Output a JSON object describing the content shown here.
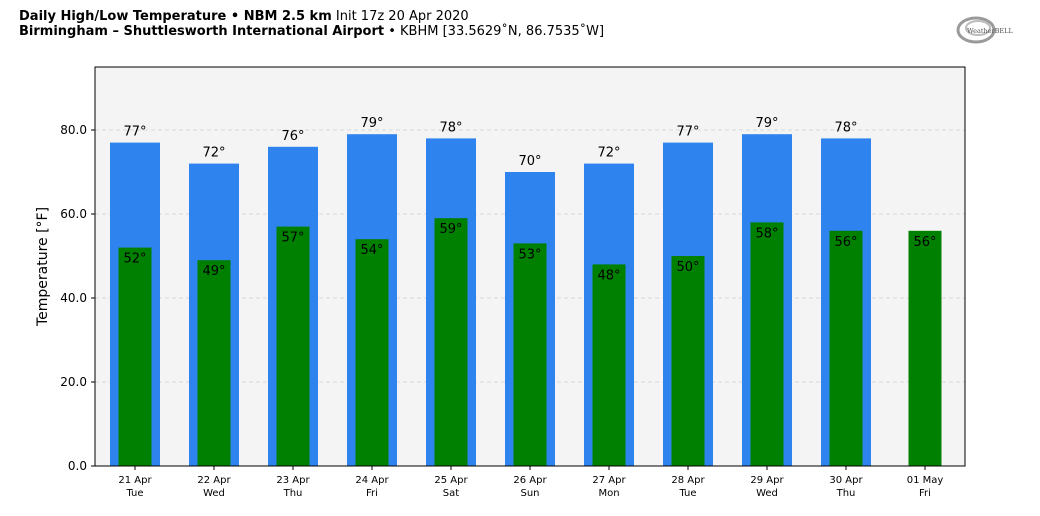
{
  "header": {
    "title_bold": "Daily High/Low Temperature • NBM 2.5 km",
    "title_init": "Init 17z 20 Apr 2020",
    "location_bold": "Birmingham – Shuttlesworth International Airport",
    "location_detail": "• KBHM [33.5629˚N, 86.7535˚W]",
    "logo_text": "WeatherBELL"
  },
  "colors": {
    "high": "#2f83ee",
    "low": "#008000",
    "plot_bg": "#f4f4f4",
    "grid": "#d8d8d8"
  },
  "chart_data": {
    "type": "bar",
    "title": "Daily High/Low Temperature • NBM 2.5 km",
    "xlabel": "",
    "ylabel": "Temperature [°F]",
    "ylim": [
      0,
      95
    ],
    "yticks": [
      0,
      20,
      40,
      60,
      80
    ],
    "ytick_labels": [
      "0.0",
      "20.0",
      "40.0",
      "60.0",
      "80.0"
    ],
    "grid": true,
    "categories": [
      {
        "date": "21 Apr",
        "day": "Tue"
      },
      {
        "date": "22 Apr",
        "day": "Wed"
      },
      {
        "date": "23 Apr",
        "day": "Thu"
      },
      {
        "date": "24 Apr",
        "day": "Fri"
      },
      {
        "date": "25 Apr",
        "day": "Sat"
      },
      {
        "date": "26 Apr",
        "day": "Sun"
      },
      {
        "date": "27 Apr",
        "day": "Mon"
      },
      {
        "date": "28 Apr",
        "day": "Tue"
      },
      {
        "date": "29 Apr",
        "day": "Wed"
      },
      {
        "date": "30 Apr",
        "day": "Thu"
      },
      {
        "date": "01 May",
        "day": "Fri"
      }
    ],
    "series": [
      {
        "values": [
          77,
          72,
          76,
          79,
          78,
          70,
          72,
          77,
          79,
          78,
          null
        ],
        "labels": [
          "77°",
          "72°",
          "76°",
          "79°",
          "78°",
          "70°",
          "72°",
          "77°",
          "79°",
          "78°",
          ""
        ]
      },
      {
        "values": [
          52,
          49,
          57,
          54,
          59,
          53,
          48,
          50,
          58,
          56,
          56
        ],
        "labels": [
          "52°",
          "49°",
          "57°",
          "54°",
          "59°",
          "53°",
          "48°",
          "50°",
          "58°",
          "56°",
          "56°"
        ]
      }
    ]
  }
}
